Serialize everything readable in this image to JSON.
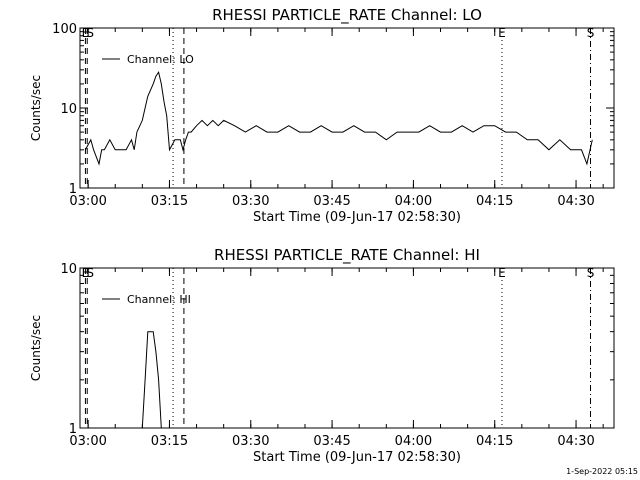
{
  "footer": {
    "timestamp": "1-Sep-2022 05:15"
  },
  "chart_data": [
    {
      "type": "line",
      "title": "RHESSI PARTICLE_RATE Channel: LO",
      "xlabel": "Start Time (09-Jun-17 02:58:30)",
      "ylabel": "Counts/sec",
      "yscale": "log",
      "ylim": [
        1,
        100
      ],
      "xlim": [
        "02:58:30",
        "04:37:00"
      ],
      "x_tick_labels": [
        "03:00",
        "03:15",
        "03:30",
        "03:45",
        "04:00",
        "04:15",
        "04:30"
      ],
      "y_tick_labels": [
        "1",
        "10",
        "100"
      ],
      "legend": {
        "placement": "top-left",
        "entries": [
          "Channel: LO"
        ]
      },
      "markers": [
        {
          "label": "E",
          "style": "dashed",
          "time": "02:59:30"
        },
        {
          "label": "S",
          "style": "dashed",
          "time": "02:59:50"
        },
        {
          "label": "",
          "style": "dotted",
          "time": "03:15:40"
        },
        {
          "label": "",
          "style": "dashed",
          "time": "03:17:40"
        },
        {
          "label": "E",
          "style": "dotted",
          "time": "04:16:20"
        },
        {
          "label": "S",
          "style": "dashdot",
          "time": "04:32:40"
        }
      ],
      "series": [
        {
          "name": "Channel: LO",
          "x": [
            "02:59:30",
            "03:00:30",
            "03:01:00",
            "03:02:00",
            "03:02:30",
            "03:03:00",
            "03:04:00",
            "03:05:00",
            "03:06:00",
            "03:07:00",
            "03:08:00",
            "03:08:30",
            "03:09:00",
            "03:10:00",
            "03:10:30",
            "03:11:00",
            "03:12:00",
            "03:12:30",
            "03:13:00",
            "03:13:30",
            "03:14:00",
            "03:14:30",
            "03:15:00",
            "03:16:00",
            "03:17:00",
            "03:17:30",
            "03:18:00",
            "03:18:30",
            "03:19:00",
            "03:20:00",
            "03:21:00",
            "03:22:00",
            "03:23:00",
            "03:24:00",
            "03:25:00",
            "03:27:00",
            "03:29:00",
            "03:31:00",
            "03:33:00",
            "03:35:00",
            "03:37:00",
            "03:39:00",
            "03:41:00",
            "03:43:00",
            "03:45:00",
            "03:47:00",
            "03:49:00",
            "03:51:00",
            "03:53:00",
            "03:55:00",
            "03:57:00",
            "03:59:00",
            "04:01:00",
            "04:03:00",
            "04:05:00",
            "04:07:00",
            "04:09:00",
            "04:11:00",
            "04:13:00",
            "04:15:00",
            "04:17:00",
            "04:19:00",
            "04:21:00",
            "04:23:00",
            "04:25:00",
            "04:27:00",
            "04:29:00",
            "04:31:00",
            "04:32:00",
            "04:33:00"
          ],
          "y": [
            3,
            4,
            3,
            2,
            3,
            3,
            4,
            3,
            3,
            3,
            4,
            3,
            5,
            7,
            10,
            14,
            20,
            25,
            28,
            20,
            12,
            8,
            3,
            4,
            4,
            3,
            4,
            5,
            5,
            6,
            7,
            6,
            7,
            6,
            7,
            6,
            5,
            6,
            5,
            5,
            6,
            5,
            5,
            6,
            5,
            5,
            6,
            5,
            5,
            4,
            5,
            5,
            5,
            6,
            5,
            5,
            6,
            5,
            6,
            6,
            5,
            5,
            4,
            4,
            3,
            4,
            3,
            3,
            2,
            4
          ]
        }
      ]
    },
    {
      "type": "line",
      "title": "RHESSI PARTICLE_RATE Channel: HI",
      "xlabel": "Start Time (09-Jun-17 02:58:30)",
      "ylabel": "Counts/sec",
      "yscale": "log",
      "ylim": [
        1,
        10
      ],
      "xlim": [
        "02:58:30",
        "04:37:00"
      ],
      "x_tick_labels": [
        "03:00",
        "03:15",
        "03:30",
        "03:45",
        "04:00",
        "04:15",
        "04:30"
      ],
      "y_tick_labels": [
        "1",
        "10"
      ],
      "legend": {
        "placement": "top-left",
        "entries": [
          "Channel: HI"
        ]
      },
      "markers": [
        {
          "label": "E",
          "style": "dashed",
          "time": "02:59:30"
        },
        {
          "label": "S",
          "style": "dashed",
          "time": "02:59:50"
        },
        {
          "label": "",
          "style": "dotted",
          "time": "03:15:40"
        },
        {
          "label": "",
          "style": "dashed",
          "time": "03:17:40"
        },
        {
          "label": "E",
          "style": "dotted",
          "time": "04:16:20"
        },
        {
          "label": "S",
          "style": "dashdot",
          "time": "04:32:40"
        }
      ],
      "series": [
        {
          "name": "Channel: HI",
          "x": [
            "03:10:00",
            "03:10:30",
            "03:11:00",
            "03:12:00",
            "03:12:30",
            "03:13:00",
            "03:13:30"
          ],
          "y": [
            1,
            2,
            4,
            4,
            3,
            2,
            1
          ]
        }
      ]
    }
  ]
}
